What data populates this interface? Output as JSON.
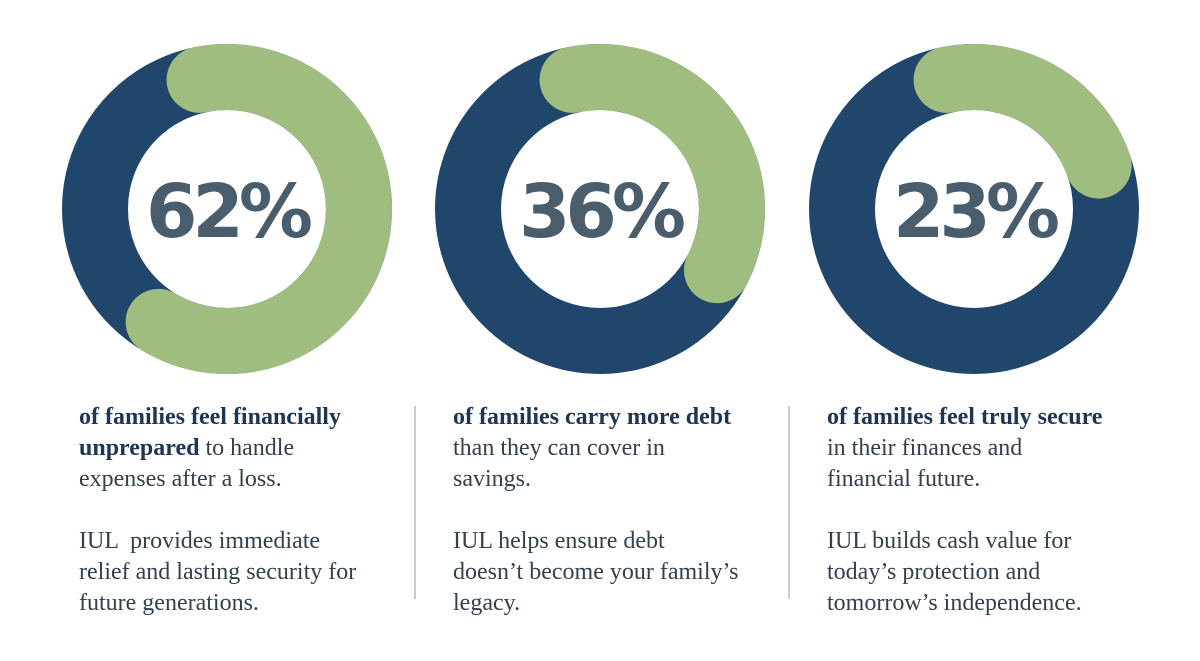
{
  "colors": {
    "navy": "#21466b",
    "green": "#9ebd7f",
    "label": "#4a5d6c",
    "bold_text": "#1f3550",
    "body_text": "#33404d",
    "divider": "#c8cdd1"
  },
  "chart_data": [
    {
      "type": "pie",
      "value_label": "62%",
      "values": [
        62,
        38
      ],
      "categories": [
        "of families feel financially unprepared",
        "remainder"
      ],
      "colors": [
        "#9ebd7f",
        "#21466b"
      ]
    },
    {
      "type": "pie",
      "value_label": "36%",
      "values": [
        36,
        64
      ],
      "categories": [
        "of families carry more debt",
        "remainder"
      ],
      "colors": [
        "#9ebd7f",
        "#21466b"
      ]
    },
    {
      "type": "pie",
      "value_label": "23%",
      "values": [
        23,
        77
      ],
      "categories": [
        "of families feel truly secure",
        "remainder"
      ],
      "colors": [
        "#9ebd7f",
        "#21466b"
      ]
    }
  ],
  "columns": [
    {
      "bold_a": "of families feel financially",
      "bold_b": "unprepared",
      "rest_a": " to handle",
      "rest_b": "expenses after a loss.",
      "note_a": "IUL  provides immediate",
      "note_b": "relief and lasting security for",
      "note_c": "future generations."
    },
    {
      "bold_a": "of families carry more debt",
      "rest_a": "than they can cover in",
      "rest_b": "savings.",
      "note_a": "IUL helps ensure debt",
      "note_b": "doesn’t become your family’s",
      "note_c": "legacy."
    },
    {
      "bold_a": "of families feel truly secure",
      "rest_a": "in their finances and",
      "rest_b": "financial future.",
      "note_a": "IUL builds cash value for",
      "note_b": "today’s protection and",
      "note_c": "tomorrow’s independence."
    }
  ]
}
